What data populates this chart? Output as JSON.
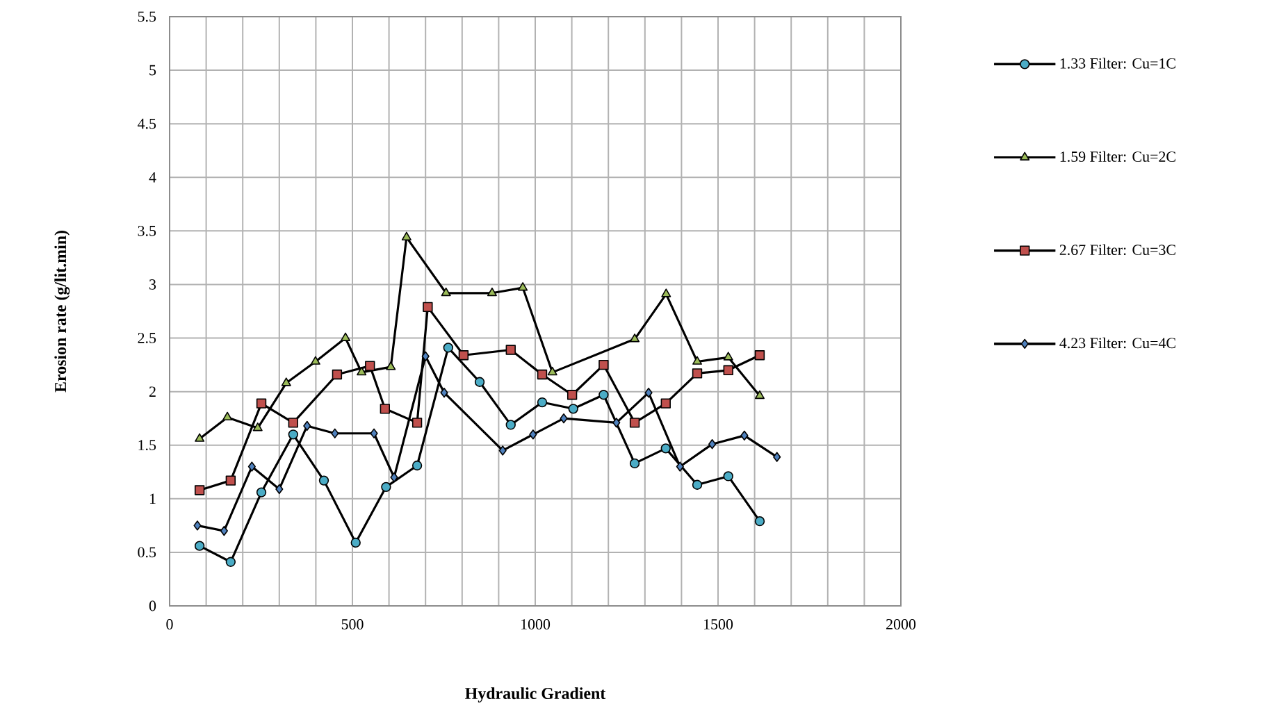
{
  "chart_data": {
    "type": "line",
    "xlabel": "Hydraulic Gradient",
    "ylabel": "Erosion rate (g/lit.min)",
    "xlim": [
      0,
      2000
    ],
    "ylim": [
      0,
      5.5
    ],
    "xticks": [
      0,
      500,
      1000,
      1500,
      2000
    ],
    "yticks": [
      0,
      0.5,
      1,
      1.5,
      2,
      2.5,
      3,
      3.5,
      4,
      4.5,
      5,
      5.5
    ],
    "grid": true,
    "legend": "right",
    "series": [
      {
        "name": "1.33 Filter: Cu=1C",
        "color": "#4bacc6",
        "marker": "circle",
        "x": [
          82,
          167,
          251,
          338,
          422,
          509,
          592,
          677,
          762,
          848,
          933,
          1019,
          1104,
          1187,
          1272,
          1357,
          1443,
          1528,
          1614
        ],
        "values": [
          0.56,
          0.41,
          1.06,
          1.6,
          1.17,
          0.59,
          1.11,
          1.31,
          2.41,
          2.09,
          1.69,
          1.9,
          1.84,
          1.97,
          1.33,
          1.47,
          1.13,
          1.21,
          0.79
        ]
      },
      {
        "name": "1.59 Filter: Cu=2C",
        "color": "#9bbb59",
        "marker": "triangle",
        "x": [
          82,
          158,
          241,
          319,
          399,
          481,
          525,
          605,
          648,
          756,
          882,
          966,
          1047,
          1272,
          1358,
          1443,
          1528,
          1614
        ],
        "values": [
          1.56,
          1.76,
          1.66,
          2.08,
          2.28,
          2.5,
          2.18,
          2.23,
          3.44,
          2.92,
          2.92,
          2.97,
          2.18,
          2.49,
          2.91,
          2.28,
          2.32,
          1.96
        ]
      },
      {
        "name": "2.67 Filter: Cu=3C",
        "color": "#c0504d",
        "marker": "square",
        "x": [
          82,
          167,
          251,
          338,
          458,
          548,
          589,
          677,
          706,
          804,
          933,
          1019,
          1101,
          1187,
          1272,
          1357,
          1443,
          1528,
          1614
        ],
        "values": [
          1.08,
          1.17,
          1.89,
          1.71,
          2.16,
          2.24,
          1.84,
          1.71,
          2.79,
          2.34,
          2.39,
          2.16,
          1.97,
          2.25,
          1.71,
          1.89,
          2.17,
          2.2,
          2.34
        ]
      },
      {
        "name": "4.23 Filter: Cu=4C",
        "color": "#4f81bd",
        "marker": "diamond",
        "x": [
          76,
          149,
          225,
          300,
          376,
          452,
          559,
          614,
          700,
          751,
          911,
          994,
          1078,
          1222,
          1310,
          1396,
          1484,
          1572,
          1661
        ],
        "values": [
          0.75,
          0.7,
          1.3,
          1.09,
          1.68,
          1.61,
          1.61,
          1.2,
          2.33,
          1.99,
          1.45,
          1.6,
          1.75,
          1.71,
          1.99,
          1.3,
          1.51,
          1.59,
          1.39
        ]
      }
    ]
  }
}
